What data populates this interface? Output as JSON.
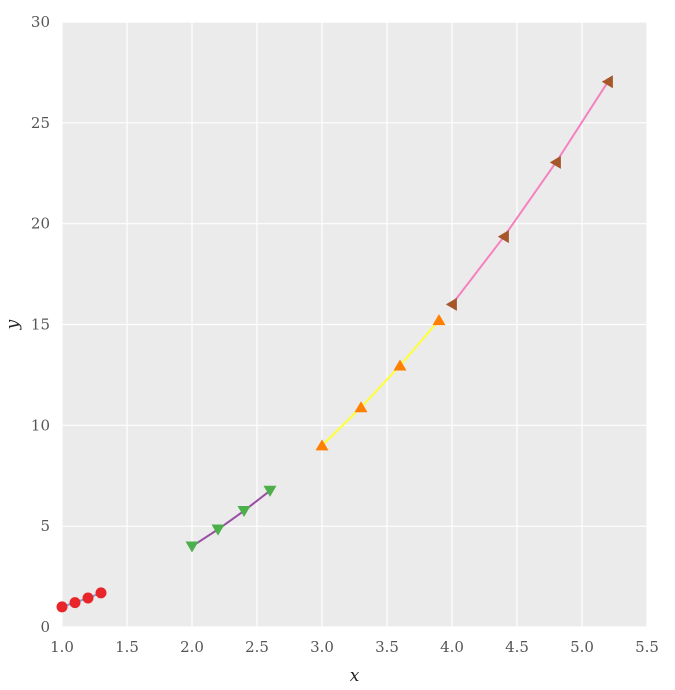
{
  "chart_data": {
    "type": "line",
    "xlabel": "x",
    "ylabel": "y",
    "xlim": [
      1.0,
      5.5
    ],
    "ylim": [
      0,
      30
    ],
    "xticks": [
      1.0,
      1.5,
      2.0,
      2.5,
      3.0,
      3.5,
      4.0,
      4.5,
      5.0,
      5.5
    ],
    "xtick_labels": [
      "1.0",
      "1.5",
      "2.0",
      "2.5",
      "3.0",
      "3.5",
      "4.0",
      "4.5",
      "5.0",
      "5.5"
    ],
    "yticks": [
      0,
      5,
      10,
      15,
      20,
      25,
      30
    ],
    "ytick_labels": [
      "0",
      "5",
      "10",
      "15",
      "20",
      "25",
      "30"
    ],
    "grid": true,
    "background": "#ebebeb",
    "series": [
      {
        "x": [
          1.0,
          1.1,
          1.2,
          1.3
        ],
        "y": [
          1.0,
          1.21,
          1.44,
          1.69
        ],
        "line_color": "#7f9fd0",
        "marker": "circle",
        "marker_color": "#e8262a"
      },
      {
        "x": [
          2.0,
          2.2,
          2.4,
          2.6
        ],
        "y": [
          4.0,
          4.84,
          5.76,
          6.76
        ],
        "line_color": "#984ea3",
        "marker": "triangle-down",
        "marker_color": "#4daf4a"
      },
      {
        "x": [
          3.0,
          3.3,
          3.6,
          3.9
        ],
        "y": [
          9.0,
          10.89,
          12.96,
          15.21
        ],
        "line_color": "#ffff33",
        "marker": "triangle-up",
        "marker_color": "#ff7f00"
      },
      {
        "x": [
          4.0,
          4.4,
          4.8,
          5.2
        ],
        "y": [
          16.0,
          19.36,
          23.04,
          27.04
        ],
        "line_color": "#f781bf",
        "marker": "triangle-left",
        "marker_color": "#a65628"
      }
    ]
  }
}
